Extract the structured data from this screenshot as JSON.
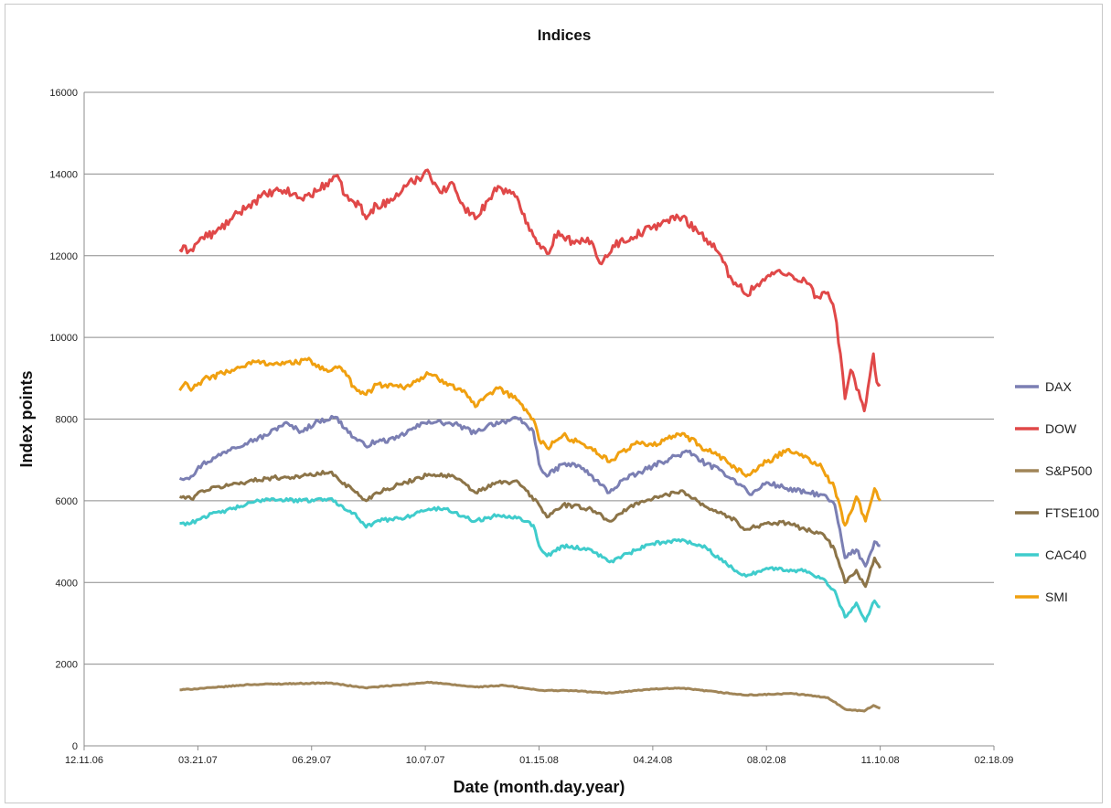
{
  "chart_data": {
    "type": "line",
    "title": "Indices",
    "xlabel": "Date (month.day.year)",
    "ylabel": "Index points",
    "ylim": [
      0,
      16000
    ],
    "yticks": [
      0,
      2000,
      4000,
      6000,
      8000,
      10000,
      12000,
      14000,
      16000
    ],
    "xlim": [
      "2006-12-11",
      "2009-02-18"
    ],
    "xticks": [
      {
        "date": "2006-12-11",
        "label": "12.11.06"
      },
      {
        "date": "2007-03-21",
        "label": "03.21.07"
      },
      {
        "date": "2007-06-29",
        "label": "06.29.07"
      },
      {
        "date": "2007-10-07",
        "label": "10.07.07"
      },
      {
        "date": "2008-01-15",
        "label": "01.15.08"
      },
      {
        "date": "2008-04-24",
        "label": "04.24.08"
      },
      {
        "date": "2008-08-02",
        "label": "08.02.08"
      },
      {
        "date": "2008-11-10",
        "label": "11.10.08"
      },
      {
        "date": "2009-02-18",
        "label": "02.18.09"
      }
    ],
    "grid": "horizontal",
    "legend_position": "right",
    "series": [
      {
        "name": "DAX",
        "color": "#7b7fb3",
        "points": [
          [
            "2007-03-05",
            6550
          ],
          [
            "2007-03-15",
            6600
          ],
          [
            "2007-03-25",
            6900
          ],
          [
            "2007-04-05",
            7050
          ],
          [
            "2007-04-20",
            7300
          ],
          [
            "2007-05-05",
            7450
          ],
          [
            "2007-05-20",
            7600
          ],
          [
            "2007-06-05",
            7900
          ],
          [
            "2007-06-20",
            7700
          ],
          [
            "2007-07-05",
            7950
          ],
          [
            "2007-07-20",
            8050
          ],
          [
            "2007-08-05",
            7550
          ],
          [
            "2007-08-15",
            7350
          ],
          [
            "2007-08-25",
            7450
          ],
          [
            "2007-09-10",
            7500
          ],
          [
            "2007-09-25",
            7750
          ],
          [
            "2007-10-10",
            7950
          ],
          [
            "2007-10-25",
            7900
          ],
          [
            "2007-11-05",
            7850
          ],
          [
            "2007-11-20",
            7650
          ],
          [
            "2007-12-01",
            7850
          ],
          [
            "2007-12-15",
            7950
          ],
          [
            "2007-12-28",
            8000
          ],
          [
            "2008-01-10",
            7700
          ],
          [
            "2008-01-15",
            6900
          ],
          [
            "2008-01-22",
            6600
          ],
          [
            "2008-02-05",
            6900
          ],
          [
            "2008-02-20",
            6850
          ],
          [
            "2008-03-05",
            6500
          ],
          [
            "2008-03-17",
            6200
          ],
          [
            "2008-03-28",
            6500
          ],
          [
            "2008-04-10",
            6650
          ],
          [
            "2008-04-24",
            6850
          ],
          [
            "2008-05-10",
            7050
          ],
          [
            "2008-05-25",
            7200
          ],
          [
            "2008-06-10",
            6900
          ],
          [
            "2008-06-25",
            6700
          ],
          [
            "2008-07-10",
            6400
          ],
          [
            "2008-07-20",
            6150
          ],
          [
            "2008-08-02",
            6450
          ],
          [
            "2008-08-20",
            6300
          ],
          [
            "2008-09-05",
            6200
          ],
          [
            "2008-09-20",
            6150
          ],
          [
            "2008-10-01",
            5900
          ],
          [
            "2008-10-10",
            4600
          ],
          [
            "2008-10-20",
            4800
          ],
          [
            "2008-10-28",
            4400
          ],
          [
            "2008-11-05",
            5000
          ],
          [
            "2008-11-10",
            4900
          ]
        ]
      },
      {
        "name": "DOW",
        "color": "#e04848",
        "points": [
          [
            "2007-03-05",
            12150
          ],
          [
            "2007-03-15",
            12150
          ],
          [
            "2007-03-25",
            12450
          ],
          [
            "2007-04-05",
            12550
          ],
          [
            "2007-04-20",
            12900
          ],
          [
            "2007-05-05",
            13250
          ],
          [
            "2007-05-20",
            13500
          ],
          [
            "2007-06-05",
            13600
          ],
          [
            "2007-06-20",
            13400
          ],
          [
            "2007-07-05",
            13600
          ],
          [
            "2007-07-20",
            13950
          ],
          [
            "2007-08-01",
            13350
          ],
          [
            "2007-08-10",
            13250
          ],
          [
            "2007-08-16",
            12900
          ],
          [
            "2007-08-25",
            13250
          ],
          [
            "2007-09-05",
            13300
          ],
          [
            "2007-09-20",
            13700
          ],
          [
            "2007-10-01",
            13900
          ],
          [
            "2007-10-09",
            14100
          ],
          [
            "2007-10-20",
            13550
          ],
          [
            "2007-11-01",
            13750
          ],
          [
            "2007-11-10",
            13200
          ],
          [
            "2007-11-20",
            12900
          ],
          [
            "2007-12-01",
            13350
          ],
          [
            "2007-12-10",
            13700
          ],
          [
            "2007-12-25",
            13450
          ],
          [
            "2008-01-05",
            12800
          ],
          [
            "2008-01-15",
            12300
          ],
          [
            "2008-01-22",
            12050
          ],
          [
            "2008-02-01",
            12600
          ],
          [
            "2008-02-15",
            12300
          ],
          [
            "2008-03-01",
            12350
          ],
          [
            "2008-03-10",
            11800
          ],
          [
            "2008-03-20",
            12250
          ],
          [
            "2008-04-05",
            12450
          ],
          [
            "2008-04-24",
            12700
          ],
          [
            "2008-05-05",
            12850
          ],
          [
            "2008-05-20",
            12950
          ],
          [
            "2008-06-05",
            12550
          ],
          [
            "2008-06-20",
            12100
          ],
          [
            "2008-07-01",
            11500
          ],
          [
            "2008-07-15",
            11050
          ],
          [
            "2008-07-25",
            11300
          ],
          [
            "2008-08-10",
            11600
          ],
          [
            "2008-08-25",
            11500
          ],
          [
            "2008-09-05",
            11400
          ],
          [
            "2008-09-15",
            11000
          ],
          [
            "2008-09-25",
            11100
          ],
          [
            "2008-10-01",
            10600
          ],
          [
            "2008-10-06",
            9600
          ],
          [
            "2008-10-10",
            8500
          ],
          [
            "2008-10-15",
            9200
          ],
          [
            "2008-10-22",
            8700
          ],
          [
            "2008-10-27",
            8200
          ],
          [
            "2008-11-04",
            9600
          ],
          [
            "2008-11-07",
            8900
          ],
          [
            "2008-11-10",
            8850
          ]
        ]
      },
      {
        "name": "S&P500",
        "color": "#a08558",
        "points": [
          [
            "2007-03-05",
            1370
          ],
          [
            "2007-04-05",
            1430
          ],
          [
            "2007-05-05",
            1500
          ],
          [
            "2007-06-05",
            1520
          ],
          [
            "2007-07-15",
            1540
          ],
          [
            "2007-08-15",
            1420
          ],
          [
            "2007-09-20",
            1500
          ],
          [
            "2007-10-09",
            1560
          ],
          [
            "2007-11-20",
            1440
          ],
          [
            "2007-12-15",
            1480
          ],
          [
            "2008-01-15",
            1360
          ],
          [
            "2008-02-15",
            1350
          ],
          [
            "2008-03-15",
            1290
          ],
          [
            "2008-04-24",
            1390
          ],
          [
            "2008-05-20",
            1410
          ],
          [
            "2008-07-15",
            1240
          ],
          [
            "2008-08-25",
            1280
          ],
          [
            "2008-09-25",
            1180
          ],
          [
            "2008-10-10",
            900
          ],
          [
            "2008-10-27",
            850
          ],
          [
            "2008-11-04",
            990
          ],
          [
            "2008-11-10",
            920
          ]
        ]
      },
      {
        "name": "FTSE100",
        "color": "#8c7448",
        "points": [
          [
            "2007-03-05",
            6100
          ],
          [
            "2007-03-15",
            6050
          ],
          [
            "2007-03-25",
            6250
          ],
          [
            "2007-04-20",
            6400
          ],
          [
            "2007-05-20",
            6550
          ],
          [
            "2007-06-20",
            6600
          ],
          [
            "2007-07-15",
            6700
          ],
          [
            "2007-08-05",
            6250
          ],
          [
            "2007-08-16",
            6000
          ],
          [
            "2007-08-25",
            6200
          ],
          [
            "2007-09-20",
            6450
          ],
          [
            "2007-10-10",
            6650
          ],
          [
            "2007-11-01",
            6600
          ],
          [
            "2007-11-20",
            6200
          ],
          [
            "2007-12-10",
            6450
          ],
          [
            "2007-12-28",
            6450
          ],
          [
            "2008-01-15",
            5900
          ],
          [
            "2008-01-22",
            5600
          ],
          [
            "2008-02-05",
            5900
          ],
          [
            "2008-03-01",
            5800
          ],
          [
            "2008-03-17",
            5500
          ],
          [
            "2008-04-10",
            5950
          ],
          [
            "2008-04-24",
            6050
          ],
          [
            "2008-05-20",
            6250
          ],
          [
            "2008-06-10",
            5850
          ],
          [
            "2008-07-01",
            5600
          ],
          [
            "2008-07-15",
            5300
          ],
          [
            "2008-08-02",
            5450
          ],
          [
            "2008-08-20",
            5450
          ],
          [
            "2008-09-05",
            5300
          ],
          [
            "2008-09-20",
            5200
          ],
          [
            "2008-10-01",
            4800
          ],
          [
            "2008-10-10",
            4000
          ],
          [
            "2008-10-20",
            4300
          ],
          [
            "2008-10-28",
            3900
          ],
          [
            "2008-11-05",
            4600
          ],
          [
            "2008-11-10",
            4350
          ]
        ]
      },
      {
        "name": "CAC40",
        "color": "#3fcccc",
        "points": [
          [
            "2007-03-05",
            5450
          ],
          [
            "2007-03-15",
            5450
          ],
          [
            "2007-03-25",
            5600
          ],
          [
            "2007-04-20",
            5800
          ],
          [
            "2007-05-20",
            6050
          ],
          [
            "2007-06-20",
            6000
          ],
          [
            "2007-07-15",
            6050
          ],
          [
            "2007-08-05",
            5700
          ],
          [
            "2007-08-16",
            5350
          ],
          [
            "2007-08-25",
            5500
          ],
          [
            "2007-09-20",
            5600
          ],
          [
            "2007-10-10",
            5800
          ],
          [
            "2007-10-25",
            5800
          ],
          [
            "2007-11-20",
            5500
          ],
          [
            "2007-12-10",
            5650
          ],
          [
            "2007-12-28",
            5600
          ],
          [
            "2008-01-10",
            5400
          ],
          [
            "2008-01-15",
            4900
          ],
          [
            "2008-01-22",
            4650
          ],
          [
            "2008-02-05",
            4900
          ],
          [
            "2008-03-01",
            4800
          ],
          [
            "2008-03-17",
            4500
          ],
          [
            "2008-04-10",
            4800
          ],
          [
            "2008-04-24",
            4950
          ],
          [
            "2008-05-20",
            5050
          ],
          [
            "2008-06-10",
            4850
          ],
          [
            "2008-06-25",
            4500
          ],
          [
            "2008-07-15",
            4150
          ],
          [
            "2008-08-02",
            4350
          ],
          [
            "2008-08-20",
            4300
          ],
          [
            "2008-09-05",
            4300
          ],
          [
            "2008-09-20",
            4100
          ],
          [
            "2008-10-01",
            3800
          ],
          [
            "2008-10-10",
            3150
          ],
          [
            "2008-10-20",
            3500
          ],
          [
            "2008-10-28",
            3050
          ],
          [
            "2008-11-05",
            3550
          ],
          [
            "2008-11-10",
            3400
          ]
        ]
      },
      {
        "name": "SMI",
        "color": "#f0a010",
        "points": [
          [
            "2007-03-05",
            8700
          ],
          [
            "2007-03-10",
            8900
          ],
          [
            "2007-03-15",
            8700
          ],
          [
            "2007-03-25",
            8950
          ],
          [
            "2007-04-20",
            9200
          ],
          [
            "2007-05-10",
            9400
          ],
          [
            "2007-06-05",
            9350
          ],
          [
            "2007-06-25",
            9450
          ],
          [
            "2007-07-10",
            9200
          ],
          [
            "2007-07-25",
            9250
          ],
          [
            "2007-08-05",
            8800
          ],
          [
            "2007-08-16",
            8600
          ],
          [
            "2007-08-25",
            8850
          ],
          [
            "2007-09-20",
            8800
          ],
          [
            "2007-10-10",
            9100
          ],
          [
            "2007-10-25",
            8900
          ],
          [
            "2007-11-10",
            8700
          ],
          [
            "2007-11-20",
            8300
          ],
          [
            "2007-12-10",
            8750
          ],
          [
            "2007-12-28",
            8450
          ],
          [
            "2008-01-10",
            8000
          ],
          [
            "2008-01-15",
            7500
          ],
          [
            "2008-01-22",
            7300
          ],
          [
            "2008-02-05",
            7600
          ],
          [
            "2008-03-01",
            7300
          ],
          [
            "2008-03-17",
            6950
          ],
          [
            "2008-04-10",
            7450
          ],
          [
            "2008-04-24",
            7350
          ],
          [
            "2008-05-20",
            7650
          ],
          [
            "2008-06-10",
            7250
          ],
          [
            "2008-07-01",
            6900
          ],
          [
            "2008-07-15",
            6600
          ],
          [
            "2008-08-02",
            6950
          ],
          [
            "2008-08-20",
            7250
          ],
          [
            "2008-09-05",
            7100
          ],
          [
            "2008-09-20",
            6800
          ],
          [
            "2008-10-01",
            6300
          ],
          [
            "2008-10-10",
            5400
          ],
          [
            "2008-10-20",
            6100
          ],
          [
            "2008-10-28",
            5500
          ],
          [
            "2008-11-05",
            6300
          ],
          [
            "2008-11-10",
            6000
          ]
        ]
      }
    ]
  }
}
